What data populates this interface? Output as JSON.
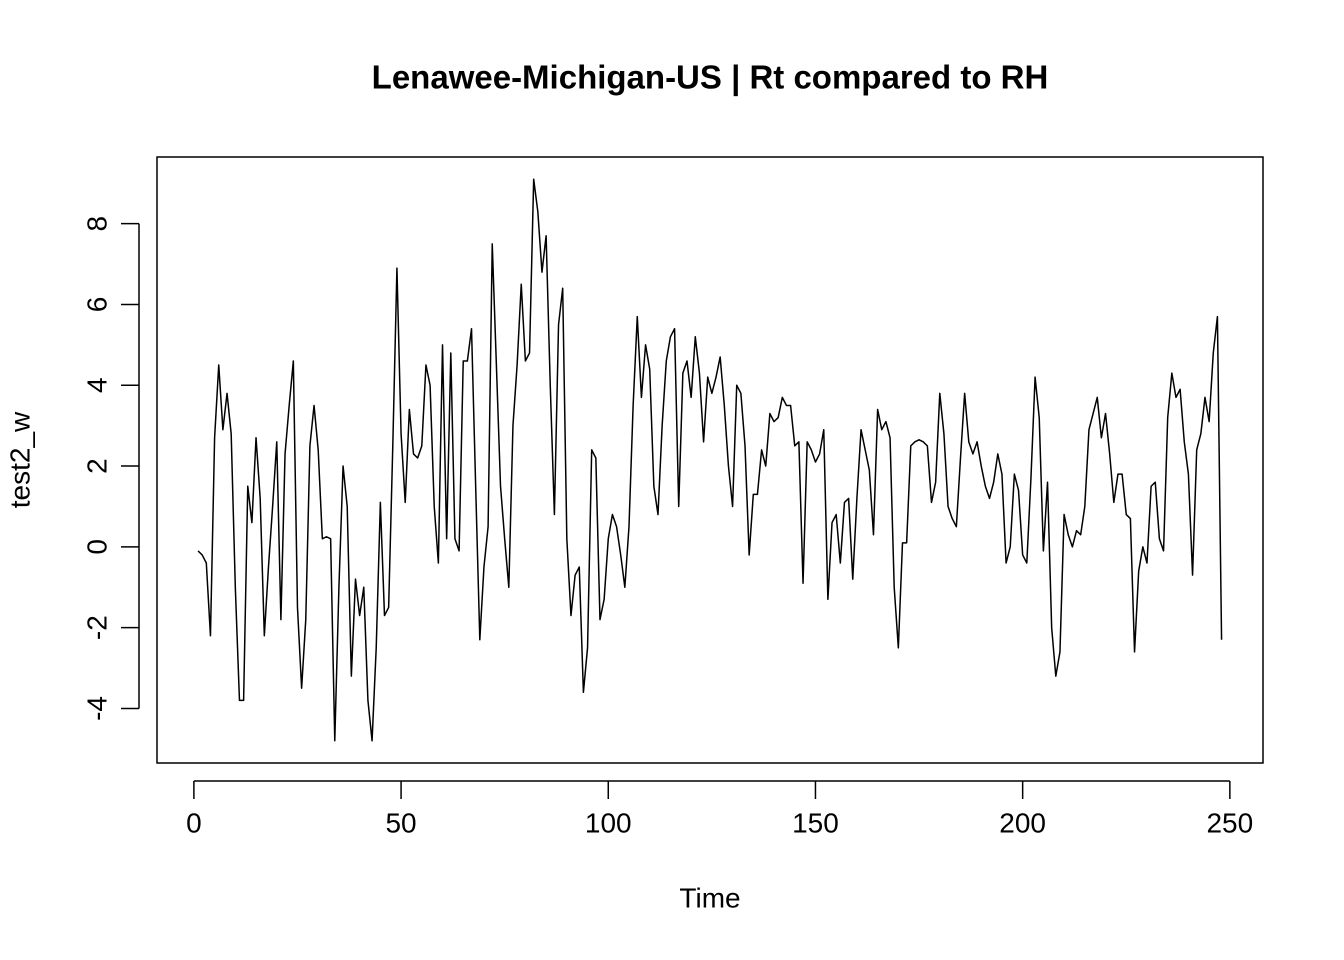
{
  "chart_data": {
    "type": "line",
    "title": "Lenawee-Michigan-US | Rt compared to RH",
    "x_label": "Time",
    "y_label": "test2_w",
    "x": [
      1,
      2,
      3,
      4,
      5,
      6,
      7,
      8,
      9,
      10,
      11,
      12,
      13,
      14,
      15,
      16,
      17,
      18,
      19,
      20,
      21,
      22,
      23,
      24,
      25,
      26,
      27,
      28,
      29,
      30,
      31,
      32,
      33,
      34,
      35,
      36,
      37,
      38,
      39,
      40,
      41,
      42,
      43,
      44,
      45,
      46,
      47,
      48,
      49,
      50,
      51,
      52,
      53,
      54,
      55,
      56,
      57,
      58,
      59,
      60,
      61,
      62,
      63,
      64,
      65,
      66,
      67,
      68,
      69,
      70,
      71,
      72,
      73,
      74,
      75,
      76,
      77,
      78,
      79,
      80,
      81,
      82,
      83,
      84,
      85,
      86,
      87,
      88,
      89,
      90,
      91,
      92,
      93,
      94,
      95,
      96,
      97,
      98,
      99,
      100,
      101,
      102,
      103,
      104,
      105,
      106,
      107,
      108,
      109,
      110,
      111,
      112,
      113,
      114,
      115,
      116,
      117,
      118,
      119,
      120,
      121,
      122,
      123,
      124,
      125,
      126,
      127,
      128,
      129,
      130,
      131,
      132,
      133,
      134,
      135,
      136,
      137,
      138,
      139,
      140,
      141,
      142,
      143,
      144,
      145,
      146,
      147,
      148,
      149,
      150,
      151,
      152,
      153,
      154,
      155,
      156,
      157,
      158,
      159,
      160,
      161,
      162,
      163,
      164,
      165,
      166,
      167,
      168,
      169,
      170,
      171,
      172,
      173,
      174,
      175,
      176,
      177,
      178,
      179,
      180,
      181,
      182,
      183,
      184,
      185,
      186,
      187,
      188,
      189,
      190,
      191,
      192,
      193,
      194,
      195,
      196,
      197,
      198,
      199,
      200,
      201,
      202,
      203,
      204,
      205,
      206,
      207,
      208,
      209,
      210,
      211,
      212,
      213,
      214,
      215,
      216,
      217,
      218,
      219,
      220,
      221,
      222,
      223,
      224,
      225,
      226,
      227,
      228,
      229,
      230,
      231,
      232,
      233,
      234,
      235,
      236,
      237,
      238,
      239,
      240,
      241,
      242,
      243,
      244,
      245,
      246,
      247,
      248
    ],
    "series": [
      {
        "name": "test2_w",
        "color": "#000000",
        "values": [
          -0.1,
          -0.2,
          -0.4,
          -2.2,
          2.7,
          4.5,
          2.9,
          3.8,
          2.8,
          -1,
          -3.8,
          -3.8,
          1.5,
          0.6,
          2.7,
          1.2,
          -2.2,
          -0.5,
          1,
          2.6,
          -1.8,
          2.3,
          3.5,
          4.6,
          -1.5,
          -3.5,
          -1.8,
          2.5,
          3.5,
          2.4,
          0.2,
          0.25,
          0.2,
          -4.8,
          -1,
          2,
          1,
          -3.2,
          -0.8,
          -1.7,
          -1,
          -3.8,
          -4.8,
          -2.5,
          1.1,
          -1.7,
          -1.5,
          2.5,
          6.9,
          2.8,
          1.1,
          3.4,
          2.3,
          2.2,
          2.5,
          4.5,
          4,
          1,
          -0.4,
          5,
          0.2,
          4.8,
          0.2,
          -0.1,
          4.6,
          4.6,
          5.4,
          1.5,
          -2.3,
          -0.5,
          0.5,
          7.5,
          4.5,
          1.5,
          0.2,
          -1,
          3,
          4.5,
          6.5,
          4.6,
          4.8,
          9.1,
          8.3,
          6.8,
          7.7,
          4,
          0.8,
          5.5,
          6.4,
          0.2,
          -1.7,
          -0.7,
          -0.5,
          -3.6,
          -2.5,
          2.4,
          2.2,
          -1.8,
          -1.3,
          0.2,
          0.8,
          0.5,
          -0.2,
          -1,
          0.5,
          3.5,
          5.7,
          3.7,
          5,
          4.4,
          1.5,
          0.8,
          3,
          4.6,
          5.2,
          5.4,
          1,
          4.3,
          4.6,
          3.7,
          5.2,
          4.3,
          2.6,
          4.2,
          3.8,
          4.2,
          4.7,
          3.5,
          2,
          1,
          4,
          3.8,
          2.5,
          -0.2,
          1.3,
          1.3,
          2.4,
          2,
          3.3,
          3.1,
          3.2,
          3.7,
          3.5,
          3.5,
          2.5,
          2.6,
          -0.9,
          2.6,
          2.4,
          2.1,
          2.3,
          2.9,
          -1.3,
          0.6,
          0.8,
          -0.4,
          1.1,
          1.2,
          -0.8,
          1.2,
          2.9,
          2.4,
          1.9,
          0.3,
          3.4,
          2.9,
          3.1,
          2.7,
          -1,
          -2.5,
          0.1,
          0.1,
          2.5,
          2.6,
          2.65,
          2.6,
          2.5,
          1.1,
          1.6,
          3.8,
          2.8,
          1,
          0.7,
          0.5,
          2.2,
          3.8,
          2.6,
          2.3,
          2.6,
          2,
          1.5,
          1.2,
          1.6,
          2.3,
          1.8,
          -0.4,
          0,
          1.8,
          1.4,
          -0.2,
          -0.4,
          1.7,
          4.2,
          3.2,
          -0.1,
          1.6,
          -2,
          -3.2,
          -2.6,
          0.8,
          0.3,
          0,
          0.4,
          0.3,
          1,
          2.9,
          3.3,
          3.7,
          2.7,
          3.3,
          2.3,
          1.1,
          1.8,
          1.8,
          0.8,
          0.7,
          -2.6,
          -0.6,
          0,
          -0.4,
          1.5,
          1.6,
          0.2,
          -0.1,
          3.2,
          4.3,
          3.7,
          3.9,
          2.6,
          1.8,
          -0.7,
          2.4,
          2.8,
          3.7,
          3.1,
          4.8,
          5.7,
          -2.3
        ]
      }
    ],
    "xlim": [
      -8.9,
      258
    ],
    "ylim": [
      -5.35,
      9.65
    ],
    "xticks": [
      0,
      50,
      100,
      150,
      200,
      250
    ],
    "yticks": [
      -4,
      -2,
      0,
      2,
      4,
      6,
      8
    ]
  }
}
